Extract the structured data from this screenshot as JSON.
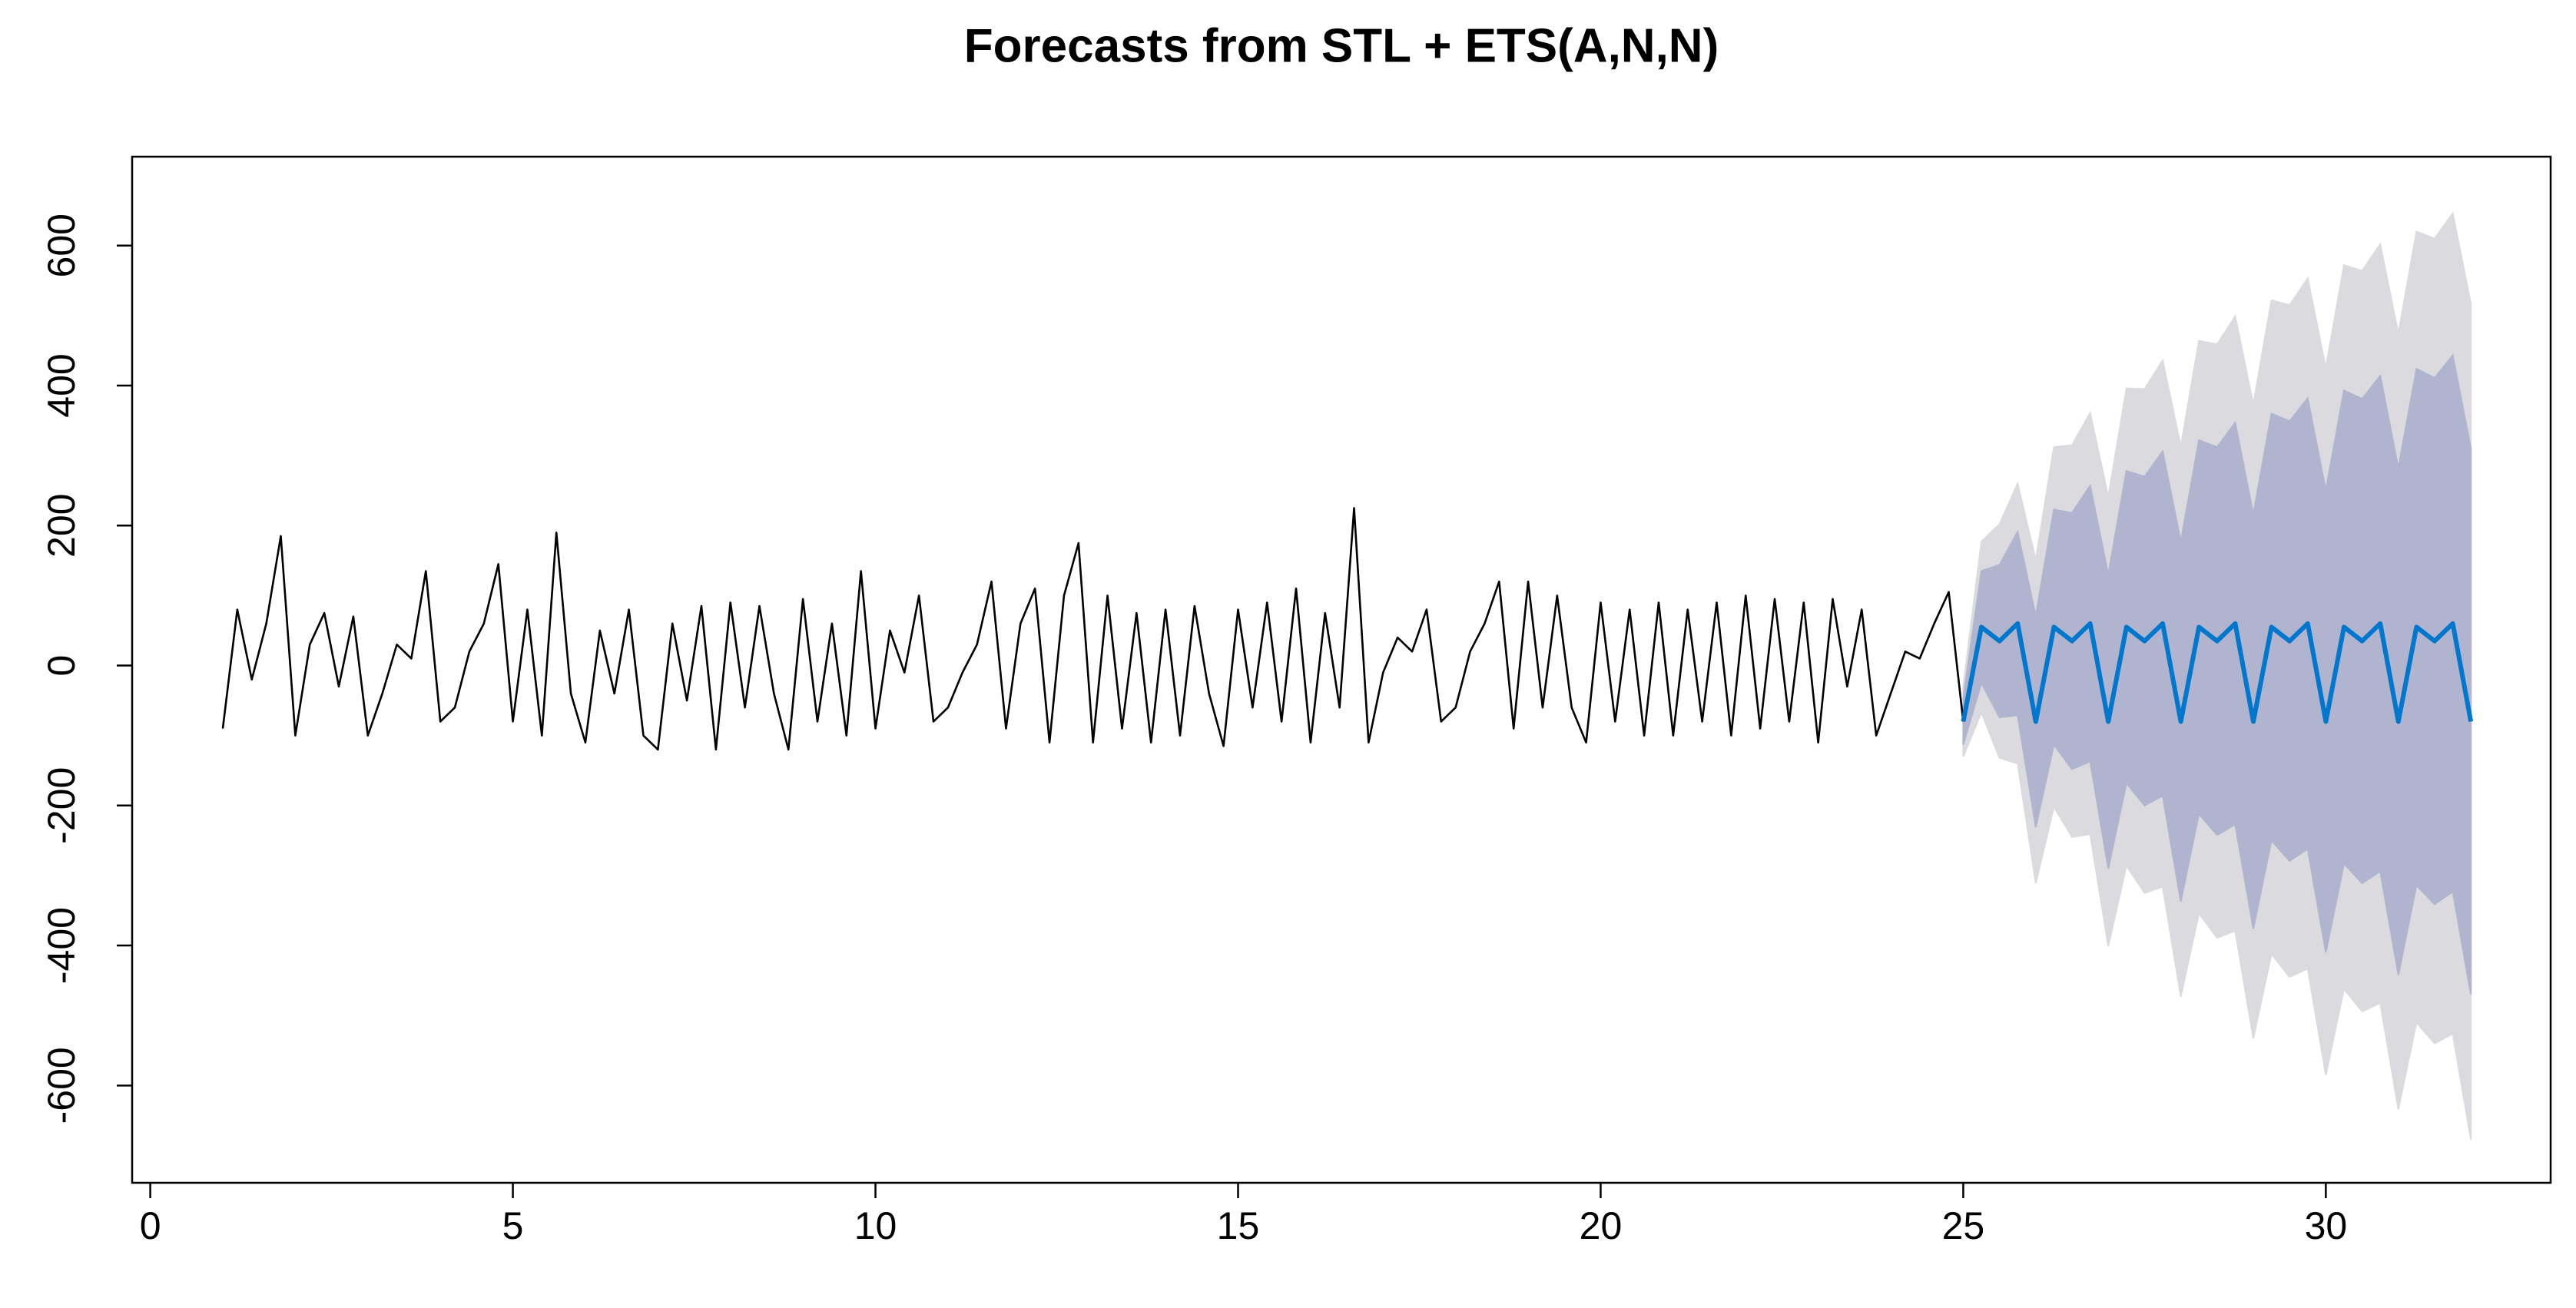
{
  "chart_data": {
    "type": "line",
    "title": "Forecasts from STL +  ETS(A,N,N)",
    "xlim": [
      -0.25,
      33.1
    ],
    "ylim": [
      -739,
      727
    ],
    "xticks": [
      0,
      5,
      10,
      15,
      20,
      25,
      30
    ],
    "yticks": [
      -600,
      -400,
      -200,
      0,
      200,
      400,
      600
    ],
    "series": [
      {
        "color": "#000000",
        "x": [
          1,
          1.2,
          1.4,
          1.6,
          1.8,
          2,
          2.2,
          2.4,
          2.6,
          2.8,
          3,
          3.2,
          3.4,
          3.6,
          3.8,
          4,
          4.2,
          4.4,
          4.6,
          4.8,
          5,
          5.2,
          5.4,
          5.6,
          5.8,
          6,
          6.2,
          6.4,
          6.6,
          6.8,
          7,
          7.2,
          7.4,
          7.6,
          7.8,
          8,
          8.2,
          8.4,
          8.6,
          8.8,
          9,
          9.2,
          9.4,
          9.6,
          9.8,
          10,
          10.2,
          10.4,
          10.6,
          10.8,
          11,
          11.2,
          11.4,
          11.6,
          11.8,
          12,
          12.2,
          12.4,
          12.6,
          12.8,
          13,
          13.2,
          13.4,
          13.6,
          13.8,
          14,
          14.2,
          14.4,
          14.6,
          14.8,
          15,
          15.2,
          15.4,
          15.6,
          15.8,
          16,
          16.2,
          16.4,
          16.6,
          16.8,
          17,
          17.2,
          17.4,
          17.6,
          17.8,
          18,
          18.2,
          18.4,
          18.6,
          18.8,
          19,
          19.2,
          19.4,
          19.6,
          19.8,
          20,
          20.2,
          20.4,
          20.6,
          20.8,
          21,
          21.2,
          21.4,
          21.6,
          21.8,
          22,
          22.2,
          22.4,
          22.6,
          22.8,
          23,
          23.2,
          23.4,
          23.6,
          23.8,
          24,
          24.2,
          24.4,
          24.6,
          24.8,
          25
        ],
        "values": [
          -90,
          80,
          -20,
          60,
          185,
          -100,
          30,
          75,
          -30,
          70,
          -100,
          -40,
          30,
          10,
          135,
          -80,
          -60,
          20,
          60,
          145,
          -80,
          80,
          -100,
          190,
          -40,
          -110,
          50,
          -40,
          80,
          -100,
          -120,
          60,
          -50,
          85,
          -120,
          90,
          -60,
          85,
          -40,
          -120,
          95,
          -80,
          60,
          -100,
          135,
          -90,
          50,
          -10,
          100,
          -80,
          -60,
          -10,
          30,
          120,
          -90,
          60,
          110,
          -110,
          100,
          175,
          -110,
          100,
          -90,
          75,
          -110,
          80,
          -100,
          85,
          -40,
          -115,
          80,
          -60,
          90,
          -80,
          110,
          -110,
          75,
          -60,
          225,
          -110,
          -10,
          40,
          20,
          80,
          -80,
          -60,
          20,
          60,
          120,
          -90,
          120,
          -60,
          100,
          -60,
          -110,
          90,
          -80,
          80,
          -100,
          90,
          -100,
          80,
          -80,
          90,
          -100,
          100,
          -90,
          95,
          -80,
          90,
          -110,
          95,
          -30,
          80,
          -100,
          -40,
          20,
          10,
          60,
          105,
          -80
        ]
      },
      {
        "color": "#0077cc",
        "x": [
          25,
          25.25,
          25.5,
          25.75,
          26,
          26.25,
          26.5,
          26.75,
          27,
          27.25,
          27.5,
          27.75,
          28,
          28.25,
          28.5,
          28.75,
          29,
          29.25,
          29.5,
          29.75,
          30,
          30.25,
          30.5,
          30.75,
          31,
          31.25,
          31.5,
          31.75,
          32
        ],
        "values": [
          -80,
          55,
          35,
          60,
          -80,
          55,
          35,
          60,
          -80,
          55,
          35,
          60,
          -80,
          55,
          35,
          60,
          -80,
          55,
          35,
          60,
          -80,
          55,
          35,
          60,
          -80,
          55,
          35,
          60,
          -80
        ],
        "intervals": [
          {
            "color": "#dadadf",
            "lower": [
              -130,
              -67,
              -132,
              -140,
              -311,
              -202,
              -245,
              -241,
              -401,
              -286,
              -325,
              -316,
              -473,
              -354,
              -389,
              -379,
              -533,
              -412,
              -445,
              -433,
              -585,
              -462,
              -494,
              -482,
              -634,
              -510,
              -540,
              -526,
              -677
            ],
            "upper": [
              -30,
              177,
              202,
              260,
              151,
              312,
              315,
              361,
              241,
              396,
              395,
              436,
              313,
              464,
              459,
              499,
              373,
              522,
              515,
              553,
              425,
              572,
              564,
              602,
              474,
              620,
              610,
              646,
              517
            ]
          },
          {
            "color": "#b0b4cf",
            "lower": [
              -113,
              -25,
              -74,
              -71,
              -231,
              -113,
              -148,
              -137,
              -290,
              -168,
              -200,
              -186,
              -337,
              -212,
              -242,
              -227,
              -376,
              -250,
              -279,
              -262,
              -410,
              -283,
              -311,
              -294,
              -442,
              -314,
              -341,
              -323,
              -470
            ],
            "upper": [
              -47,
              135,
              144,
              191,
              71,
              223,
              218,
              257,
              130,
              278,
              270,
              306,
              177,
              322,
              312,
              347,
              216,
              360,
              349,
              382,
              250,
              393,
              381,
              414,
              282,
              424,
              411,
              443,
              310
            ]
          }
        ]
      }
    ]
  }
}
